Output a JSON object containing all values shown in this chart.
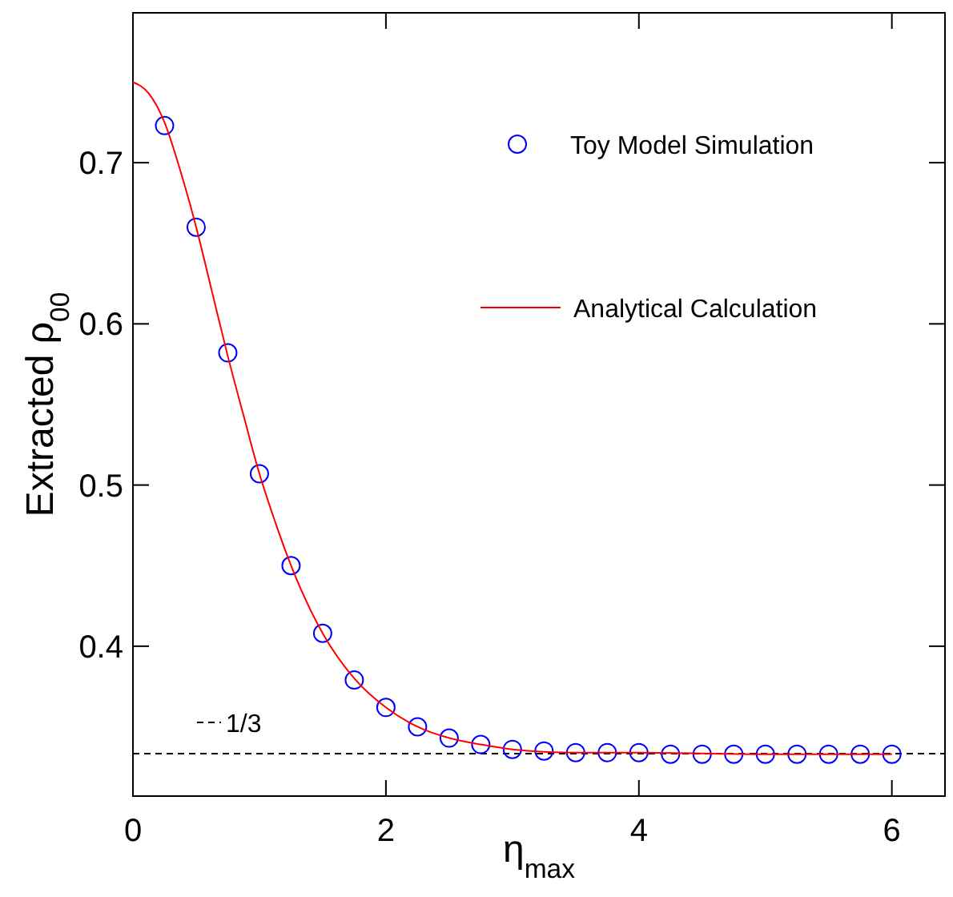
{
  "chart_data": {
    "type": "scatter",
    "xlabel": "η$_{max}$",
    "ylabel": "Extracted ρ$_{00}$",
    "xlim": [
      0,
      6.42
    ],
    "ylim": [
      0.307,
      0.793
    ],
    "xticks": [
      0,
      2,
      4,
      6
    ],
    "yticks": [
      0.4,
      0.5,
      0.6,
      0.7
    ],
    "grid": false,
    "legend": "top right",
    "marker": "circle",
    "series": [
      {
        "name": "Toy Model Simulation",
        "color": "#0000ff",
        "x": [
          0.25,
          0.5,
          0.75,
          1,
          1.25,
          1.5,
          1.75,
          2,
          2.25,
          2.5,
          2.75,
          3,
          3.25,
          3.5,
          3.75,
          4,
          4.25,
          4.5,
          4.75,
          5,
          5.25,
          5.5,
          5.75,
          6
        ],
        "values": [
          0.723,
          0.66,
          0.582,
          0.507,
          0.45,
          0.408,
          0.379,
          0.362,
          0.35,
          0.343,
          0.339,
          0.336,
          0.335,
          0.334,
          0.334,
          0.334,
          0.333,
          0.333,
          0.333,
          0.333,
          0.333,
          0.333,
          0.333,
          0.333
        ]
      },
      {
        "name": "Analytical Calculation",
        "type": "line",
        "marker": "none",
        "line_style": "solid",
        "color": "#ff0000",
        "x": [
          0,
          0.125,
          0.25,
          0.375,
          0.5,
          0.625,
          0.75,
          0.875,
          1,
          1.125,
          1.25,
          1.5,
          1.75,
          2,
          2.25,
          2.5,
          2.75,
          3,
          3.5,
          4,
          5,
          6
        ],
        "values": [
          0.75,
          0.743,
          0.725,
          0.695,
          0.66,
          0.62,
          0.58,
          0.543,
          0.507,
          0.477,
          0.45,
          0.408,
          0.38,
          0.362,
          0.35,
          0.343,
          0.339,
          0.336,
          0.334,
          0.334,
          0.333,
          0.333
        ]
      }
    ],
    "ref_lines": [
      {
        "axis": "y",
        "value": 0.3333,
        "color": "#000000",
        "line_style": "dashed"
      }
    ],
    "annotations": [
      "1/3"
    ]
  }
}
